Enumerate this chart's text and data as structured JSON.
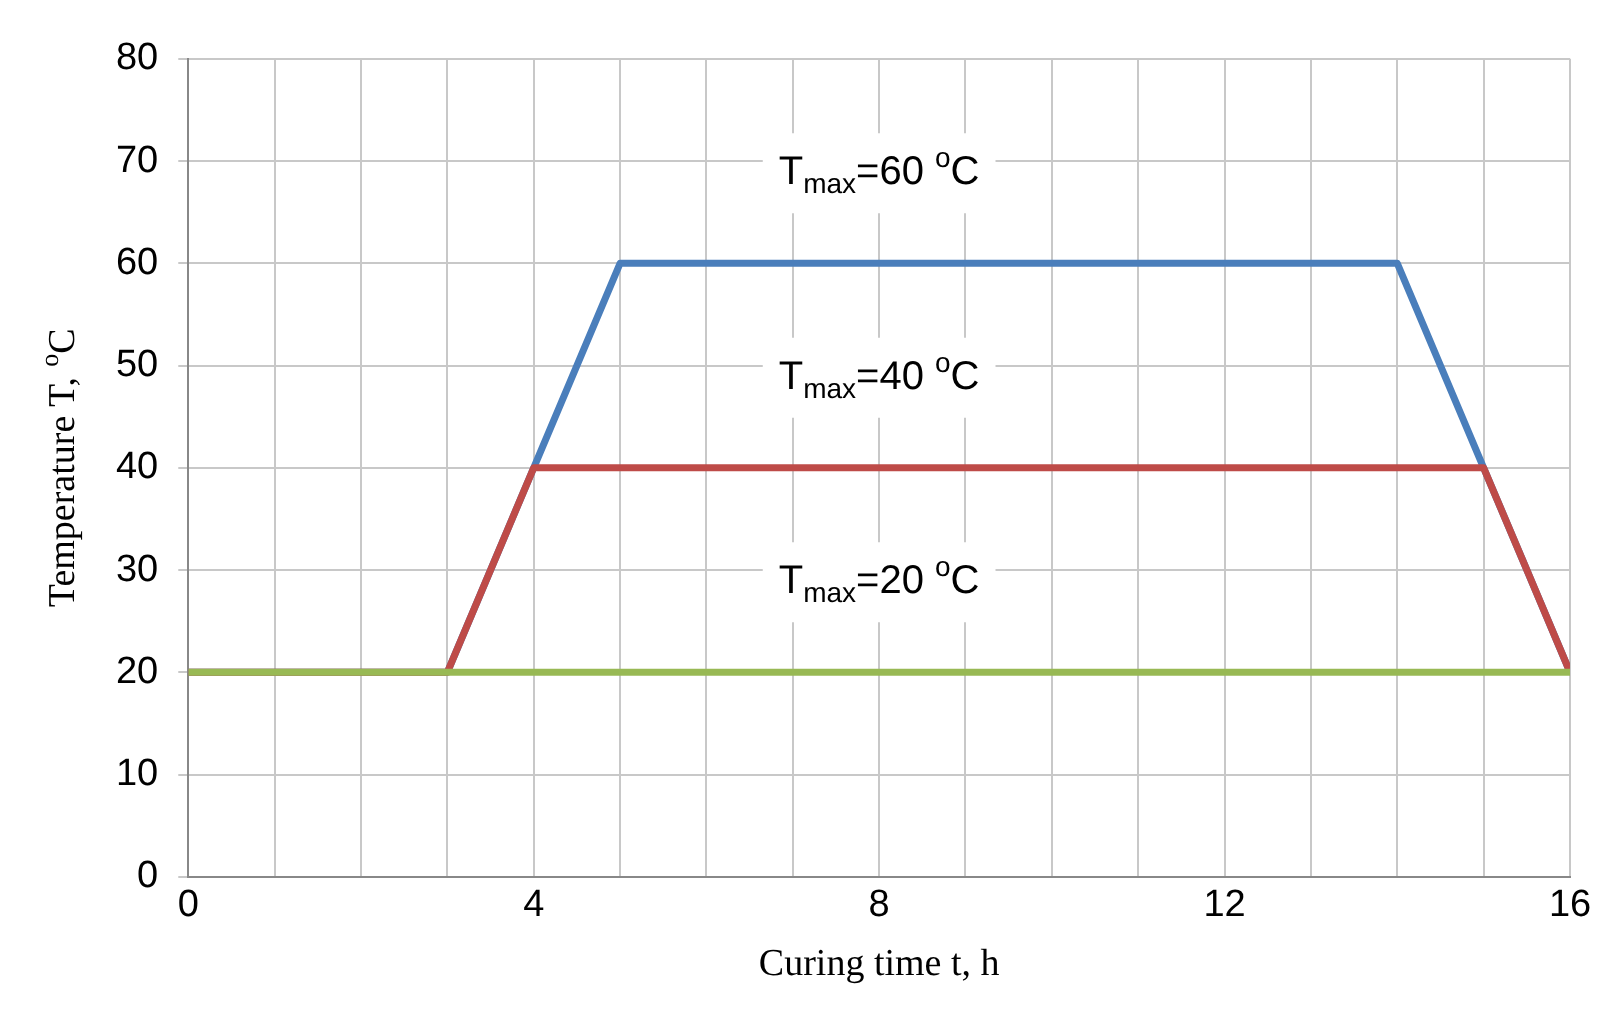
{
  "chart_data": {
    "type": "line",
    "xlabel": "Curing time t, h",
    "ylabel": "Temperature T, $^{o}$C",
    "series": [
      {
        "name": "T$_{max}$=60 $^{o}$C",
        "color": "#4a7ebb",
        "x": [
          0,
          3,
          4,
          5,
          14,
          15,
          16
        ],
        "values": [
          20,
          20,
          40,
          60,
          60,
          40,
          20
        ]
      },
      {
        "name": "T$_{max}$=40 $^{o}$C",
        "color": "#be4b48",
        "x": [
          0,
          3,
          4,
          15,
          16
        ],
        "values": [
          20,
          20,
          40,
          40,
          20
        ]
      },
      {
        "name": "T$_{max}$=20 $^{o}$C",
        "color": "#98b954",
        "x": [
          0,
          16
        ],
        "values": [
          20,
          20
        ]
      }
    ],
    "xlim": [
      0,
      16
    ],
    "xticks": [
      0,
      {
        "value": 1,
        "label": null
      },
      {
        "value": 2,
        "label": null
      },
      {
        "value": 3,
        "label": null
      },
      4,
      {
        "value": 5,
        "label": null
      },
      {
        "value": 6,
        "label": null
      },
      {
        "value": 7,
        "label": null
      },
      8,
      {
        "value": 9,
        "label": null
      },
      {
        "value": 10,
        "label": null
      },
      {
        "value": 11,
        "label": null
      },
      12,
      {
        "value": 13,
        "label": null
      },
      {
        "value": 14,
        "label": null
      },
      {
        "value": 15,
        "label": null
      },
      16
    ],
    "ylim": [
      0,
      80
    ],
    "yticks": [
      0,
      10,
      20,
      30,
      40,
      50,
      60,
      70,
      80
    ],
    "grid": true,
    "legend": false,
    "marker": "none",
    "line_style": "solid"
  }
}
